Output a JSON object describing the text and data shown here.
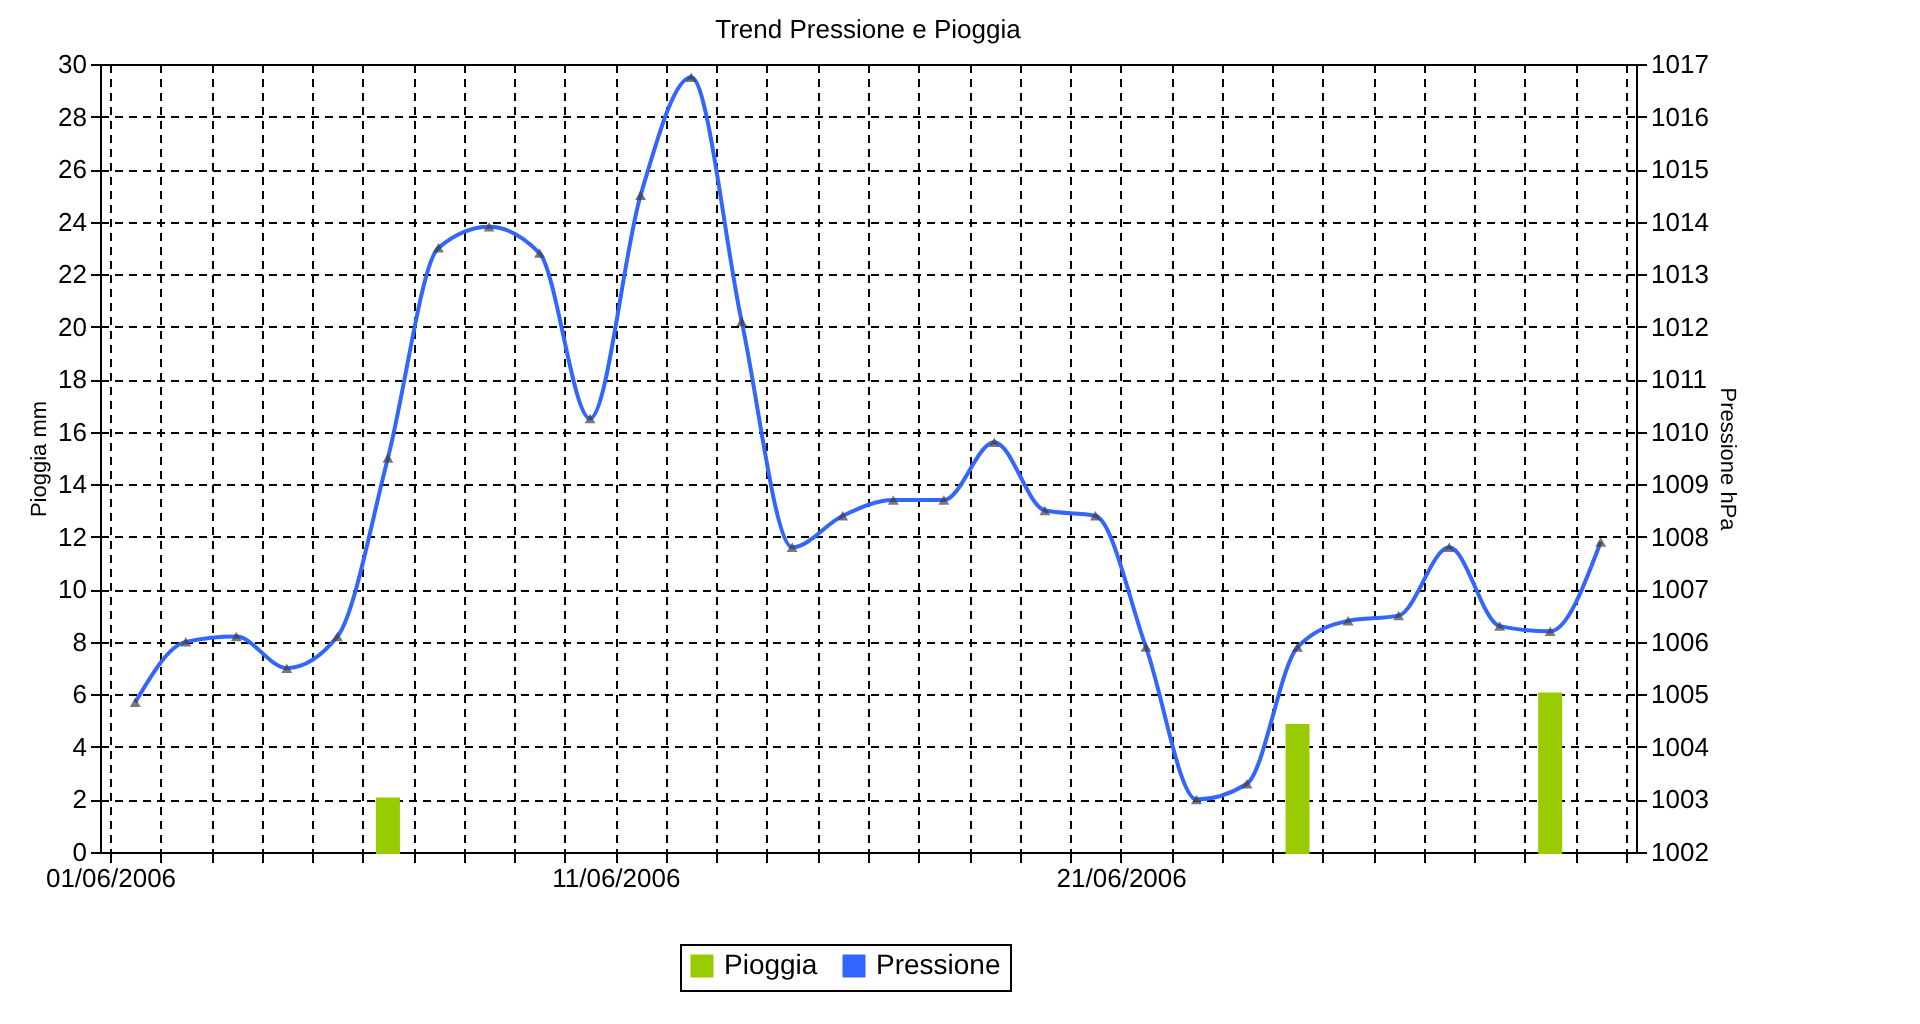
{
  "chart_data": {
    "type": "bar",
    "title": "Trend Pressione e Pioggia",
    "ylabel": "Pioggia mm",
    "y2label": "Pressione hPa",
    "x": [
      "2006-06-01T12:00",
      "2006-06-02T12:00",
      "2006-06-03T12:00",
      "2006-06-04T12:00",
      "2006-06-05T12:00",
      "2006-06-06T12:00",
      "2006-06-07T12:00",
      "2006-06-08T12:00",
      "2006-06-09T12:00",
      "2006-06-10T12:00",
      "2006-06-11T12:00",
      "2006-06-12T12:00",
      "2006-06-13T12:00",
      "2006-06-14T12:00",
      "2006-06-15T12:00",
      "2006-06-16T12:00",
      "2006-06-17T12:00",
      "2006-06-18T12:00",
      "2006-06-19T12:00",
      "2006-06-20T12:00",
      "2006-06-21T12:00",
      "2006-06-22T12:00",
      "2006-06-23T12:00",
      "2006-06-24T12:00",
      "2006-06-25T12:00",
      "2006-06-26T12:00",
      "2006-06-27T12:00",
      "2006-06-28T12:00",
      "2006-06-29T12:00",
      "2006-06-30T12:00"
    ],
    "series": [
      {
        "name": "Pioggia",
        "color": "#99cc00",
        "values": [
          null,
          null,
          null,
          null,
          null,
          2.0,
          null,
          null,
          null,
          null,
          null,
          null,
          null,
          null,
          null,
          null,
          null,
          null,
          null,
          null,
          null,
          null,
          null,
          4.8,
          null,
          null,
          null,
          null,
          6.0,
          null
        ]
      },
      {
        "name": "Pressione",
        "type": "line",
        "axis": "y2",
        "color": "#3366ff",
        "values": [
          1004.85,
          1006.0,
          1006.1,
          1005.5,
          1006.1,
          1009.5,
          1013.5,
          1013.9,
          1013.4,
          1010.25,
          1014.5,
          1016.75,
          1012.1,
          1007.8,
          1008.4,
          1008.7,
          1008.7,
          1009.8,
          1008.5,
          1008.4,
          1005.9,
          1003.0,
          1003.3,
          1005.9,
          1006.4,
          1006.5,
          1007.8,
          1006.3,
          1006.2,
          1007.9
        ]
      }
    ],
    "xlim": [
      "2006-06-01",
      "2006-07-01"
    ],
    "xticks": [
      {
        "value": "2006-06-01",
        "label": "01/06/2006"
      },
      {
        "value": "2006-06-02",
        "label": null
      },
      {
        "value": "2006-06-03",
        "label": null
      },
      {
        "value": "2006-06-04",
        "label": null
      },
      {
        "value": "2006-06-05",
        "label": null
      },
      {
        "value": "2006-06-06",
        "label": null
      },
      {
        "value": "2006-06-07",
        "label": null
      },
      {
        "value": "2006-06-08",
        "label": null
      },
      {
        "value": "2006-06-09",
        "label": null
      },
      {
        "value": "2006-06-10",
        "label": null
      },
      {
        "value": "2006-06-11",
        "label": "11/06/2006"
      },
      {
        "value": "2006-06-12",
        "label": null
      },
      {
        "value": "2006-06-13",
        "label": null
      },
      {
        "value": "2006-06-14",
        "label": null
      },
      {
        "value": "2006-06-15",
        "label": null
      },
      {
        "value": "2006-06-16",
        "label": null
      },
      {
        "value": "2006-06-17",
        "label": null
      },
      {
        "value": "2006-06-18",
        "label": null
      },
      {
        "value": "2006-06-19",
        "label": null
      },
      {
        "value": "2006-06-20",
        "label": null
      },
      {
        "value": "2006-06-21",
        "label": "21/06/2006"
      },
      {
        "value": "2006-06-22",
        "label": null
      },
      {
        "value": "2006-06-23",
        "label": null
      },
      {
        "value": "2006-06-24",
        "label": null
      },
      {
        "value": "2006-06-25",
        "label": null
      },
      {
        "value": "2006-06-26",
        "label": null
      },
      {
        "value": "2006-06-27",
        "label": null
      },
      {
        "value": "2006-06-28",
        "label": null
      },
      {
        "value": "2006-06-29",
        "label": null
      },
      {
        "value": "2006-06-30",
        "label": null
      },
      {
        "value": "2006-07-01",
        "label": null
      }
    ],
    "ylim": [
      0,
      30
    ],
    "yticks": [
      0,
      2,
      4,
      6,
      8,
      10,
      12,
      14,
      16,
      18,
      20,
      22,
      24,
      26,
      28,
      30
    ],
    "y2lim": [
      1002,
      1017
    ],
    "y2ticks": [
      1002,
      1003,
      1004,
      1005,
      1006,
      1007,
      1008,
      1009,
      1010,
      1011,
      1012,
      1013,
      1014,
      1015,
      1016,
      1017
    ],
    "grid": true,
    "legend": "bottom",
    "marker": "triangle"
  }
}
